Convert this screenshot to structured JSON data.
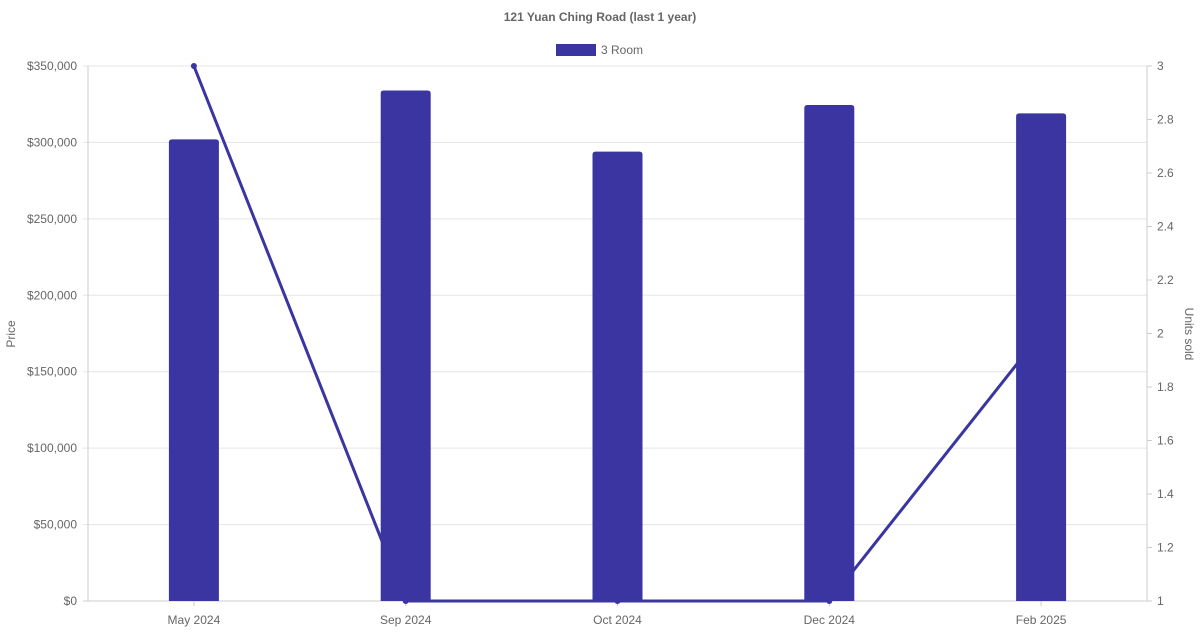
{
  "chart_data": {
    "type": "bar",
    "title": "121 Yuan Ching Road (last 1 year)",
    "categories": [
      "May 2024",
      "Sep 2024",
      "Oct 2024",
      "Dec 2024",
      "Feb 2025"
    ],
    "series": [
      {
        "name": "3 Room",
        "type": "bar",
        "axis": "left",
        "values": [
          302000,
          334000,
          294000,
          324500,
          319000
        ],
        "color": "#3a35a0"
      },
      {
        "type": "line",
        "axis": "right",
        "values": [
          3,
          1,
          1,
          1,
          2
        ],
        "color": "#3a35a0"
      }
    ],
    "ylabel": "Price",
    "y2label": "Units sold",
    "ylim": [
      0,
      350000
    ],
    "y2lim": [
      1,
      3
    ],
    "yticks": [
      "$0",
      "$50,000",
      "$100,000",
      "$150,000",
      "$200,000",
      "$250,000",
      "$300,000",
      "$350,000"
    ],
    "y2ticks": [
      "1",
      "1.2",
      "1.4",
      "1.6",
      "1.8",
      "2",
      "2.2",
      "2.4",
      "2.6",
      "2.8",
      "3"
    ],
    "legend": "top",
    "grid": true
  }
}
